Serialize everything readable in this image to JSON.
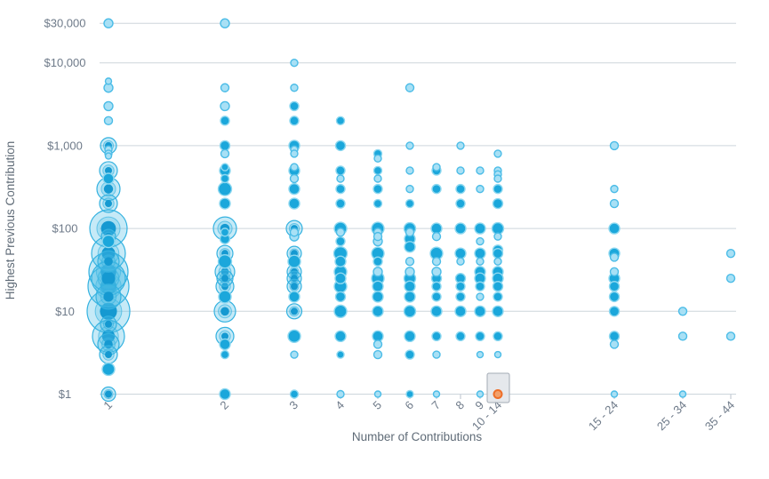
{
  "chart_data": {
    "type": "scatter",
    "title": "",
    "xlabel": "Number of Contributions",
    "ylabel": "Highest Previous Contribution",
    "y_scale": "log",
    "grid": "horizontal-only",
    "y_ticks": [
      "$1",
      "$10",
      "$100",
      "$1,000",
      "$10,000",
      "$30,000"
    ],
    "y_tick_values": [
      1,
      10,
      100,
      1000,
      10000,
      30000
    ],
    "categories": [
      "1",
      "2",
      "3",
      "4",
      "5",
      "6",
      "7",
      "8",
      "9",
      "10 - 14",
      "15 - 24",
      "25 - 34",
      "35 - 44"
    ],
    "point_format": [
      "category_index",
      "dollar_value",
      "radius_px",
      "shade(d=dark,l=light,s=selected)"
    ],
    "points": [
      [
        0,
        30000,
        5,
        "l"
      ],
      [
        0,
        6000,
        3.5,
        "l"
      ],
      [
        0,
        5000,
        5,
        "l"
      ],
      [
        0,
        3000,
        5,
        "l"
      ],
      [
        0,
        2000,
        4.5,
        "l"
      ],
      [
        0,
        1000,
        9,
        "d"
      ],
      [
        0,
        900,
        4,
        "l"
      ],
      [
        0,
        800,
        4,
        "l"
      ],
      [
        0,
        750,
        3.5,
        "l"
      ],
      [
        0,
        500,
        10,
        "d"
      ],
      [
        0,
        400,
        6,
        "d"
      ],
      [
        0,
        300,
        13,
        "l"
      ],
      [
        0,
        200,
        10,
        "d"
      ],
      [
        0,
        100,
        21,
        "d"
      ],
      [
        0,
        80,
        8,
        "d"
      ],
      [
        0,
        70,
        7,
        "d"
      ],
      [
        0,
        50,
        19,
        "l"
      ],
      [
        0,
        40,
        12,
        "d"
      ],
      [
        0,
        30,
        22,
        "d"
      ],
      [
        0,
        25,
        19,
        "l"
      ],
      [
        0,
        20,
        23,
        "d"
      ],
      [
        0,
        15,
        14,
        "d"
      ],
      [
        0,
        10,
        24,
        "d"
      ],
      [
        0,
        7,
        9,
        "d"
      ],
      [
        0,
        5,
        18,
        "d"
      ],
      [
        0,
        4,
        12,
        "d"
      ],
      [
        0,
        3,
        10,
        "d"
      ],
      [
        0,
        2,
        7,
        "d"
      ],
      [
        0,
        1,
        8,
        "d"
      ],
      [
        1,
        30000,
        5,
        "l"
      ],
      [
        1,
        5000,
        4.5,
        "l"
      ],
      [
        1,
        3000,
        5,
        "l"
      ],
      [
        1,
        2000,
        5,
        "d"
      ],
      [
        1,
        1000,
        5.5,
        "d"
      ],
      [
        1,
        800,
        4.5,
        "l"
      ],
      [
        1,
        550,
        4,
        "d"
      ],
      [
        1,
        500,
        6,
        "d"
      ],
      [
        1,
        400,
        4.5,
        "d"
      ],
      [
        1,
        300,
        7.5,
        "d"
      ],
      [
        1,
        200,
        6,
        "d"
      ],
      [
        1,
        100,
        13,
        "d"
      ],
      [
        1,
        90,
        4.5,
        "d"
      ],
      [
        1,
        75,
        5.5,
        "d"
      ],
      [
        1,
        50,
        9,
        "d"
      ],
      [
        1,
        40,
        7.5,
        "d"
      ],
      [
        1,
        30,
        11,
        "d"
      ],
      [
        1,
        25,
        9,
        "d"
      ],
      [
        1,
        20,
        10,
        "d"
      ],
      [
        1,
        15,
        7,
        "d"
      ],
      [
        1,
        10,
        12,
        "d"
      ],
      [
        1,
        5,
        10,
        "d"
      ],
      [
        1,
        4,
        6,
        "d"
      ],
      [
        1,
        3,
        4.5,
        "d"
      ],
      [
        1,
        1,
        6,
        "d"
      ],
      [
        2,
        10000,
        4,
        "l"
      ],
      [
        2,
        5000,
        4,
        "l"
      ],
      [
        2,
        3000,
        5,
        "d"
      ],
      [
        2,
        2000,
        5,
        "d"
      ],
      [
        2,
        1000,
        6,
        "d"
      ],
      [
        2,
        900,
        4,
        "l"
      ],
      [
        2,
        800,
        4,
        "l"
      ],
      [
        2,
        550,
        4,
        "l"
      ],
      [
        2,
        500,
        6,
        "d"
      ],
      [
        2,
        400,
        4.5,
        "l"
      ],
      [
        2,
        300,
        6,
        "d"
      ],
      [
        2,
        200,
        6,
        "d"
      ],
      [
        2,
        100,
        9,
        "d"
      ],
      [
        2,
        90,
        4.5,
        "l"
      ],
      [
        2,
        80,
        5,
        "l"
      ],
      [
        2,
        50,
        8,
        "d"
      ],
      [
        2,
        40,
        7,
        "d"
      ],
      [
        2,
        30,
        8,
        "d"
      ],
      [
        2,
        25,
        8,
        "d"
      ],
      [
        2,
        20,
        8,
        "d"
      ],
      [
        2,
        15,
        6,
        "d"
      ],
      [
        2,
        10,
        8.5,
        "d"
      ],
      [
        2,
        5,
        7,
        "d"
      ],
      [
        2,
        3,
        4,
        "l"
      ],
      [
        2,
        1,
        4.5,
        "d"
      ],
      [
        3,
        2000,
        4.5,
        "d"
      ],
      [
        3,
        1000,
        5.5,
        "d"
      ],
      [
        3,
        500,
        5,
        "d"
      ],
      [
        3,
        400,
        4,
        "l"
      ],
      [
        3,
        300,
        5,
        "d"
      ],
      [
        3,
        200,
        5,
        "d"
      ],
      [
        3,
        100,
        7,
        "d"
      ],
      [
        3,
        90,
        4.5,
        "l"
      ],
      [
        3,
        70,
        5,
        "d"
      ],
      [
        3,
        50,
        7.5,
        "d"
      ],
      [
        3,
        40,
        6,
        "d"
      ],
      [
        3,
        30,
        7,
        "d"
      ],
      [
        3,
        25,
        6,
        "d"
      ],
      [
        3,
        20,
        7,
        "d"
      ],
      [
        3,
        15,
        5.5,
        "d"
      ],
      [
        3,
        10,
        7,
        "d"
      ],
      [
        3,
        5,
        6,
        "d"
      ],
      [
        3,
        3,
        4,
        "d"
      ],
      [
        3,
        1,
        4,
        "l"
      ],
      [
        4,
        800,
        4.5,
        "d"
      ],
      [
        4,
        700,
        4,
        "l"
      ],
      [
        4,
        500,
        4.5,
        "d"
      ],
      [
        4,
        400,
        4,
        "l"
      ],
      [
        4,
        300,
        5,
        "d"
      ],
      [
        4,
        200,
        4.5,
        "d"
      ],
      [
        4,
        100,
        7,
        "d"
      ],
      [
        4,
        90,
        4.5,
        "l"
      ],
      [
        4,
        80,
        4.5,
        "l"
      ],
      [
        4,
        70,
        5,
        "l"
      ],
      [
        4,
        50,
        7,
        "d"
      ],
      [
        4,
        40,
        5,
        "d"
      ],
      [
        4,
        30,
        5,
        "l"
      ],
      [
        4,
        25,
        7,
        "d"
      ],
      [
        4,
        20,
        6,
        "d"
      ],
      [
        4,
        15,
        6,
        "d"
      ],
      [
        4,
        10,
        6,
        "d"
      ],
      [
        4,
        5,
        6,
        "d"
      ],
      [
        4,
        4,
        4.5,
        "l"
      ],
      [
        4,
        3,
        4.5,
        "l"
      ],
      [
        4,
        1,
        3.5,
        "l"
      ],
      [
        5,
        5000,
        4.5,
        "l"
      ],
      [
        5,
        1000,
        4,
        "l"
      ],
      [
        5,
        500,
        4,
        "l"
      ],
      [
        5,
        300,
        4,
        "l"
      ],
      [
        5,
        200,
        4.5,
        "d"
      ],
      [
        5,
        100,
        6.5,
        "d"
      ],
      [
        5,
        90,
        4.5,
        "l"
      ],
      [
        5,
        75,
        6,
        "d"
      ],
      [
        5,
        60,
        6,
        "d"
      ],
      [
        5,
        40,
        4.5,
        "l"
      ],
      [
        5,
        30,
        5,
        "l"
      ],
      [
        5,
        25,
        6.5,
        "d"
      ],
      [
        5,
        20,
        6,
        "d"
      ],
      [
        5,
        15,
        6,
        "d"
      ],
      [
        5,
        10,
        6.5,
        "d"
      ],
      [
        5,
        5,
        6,
        "d"
      ],
      [
        5,
        3,
        5,
        "d"
      ],
      [
        5,
        1,
        4,
        "d"
      ],
      [
        6,
        550,
        4,
        "l"
      ],
      [
        6,
        500,
        5,
        "d"
      ],
      [
        6,
        300,
        5,
        "d"
      ],
      [
        6,
        100,
        6,
        "d"
      ],
      [
        6,
        80,
        4.5,
        "l"
      ],
      [
        6,
        50,
        7,
        "d"
      ],
      [
        6,
        40,
        4.5,
        "l"
      ],
      [
        6,
        30,
        5,
        "l"
      ],
      [
        6,
        25,
        5.5,
        "d"
      ],
      [
        6,
        20,
        5,
        "d"
      ],
      [
        6,
        15,
        5,
        "d"
      ],
      [
        6,
        10,
        6,
        "d"
      ],
      [
        6,
        5,
        5,
        "d"
      ],
      [
        6,
        3,
        4,
        "l"
      ],
      [
        6,
        1,
        3.5,
        "l"
      ],
      [
        7,
        1000,
        4,
        "l"
      ],
      [
        7,
        500,
        4,
        "l"
      ],
      [
        7,
        300,
        5,
        "d"
      ],
      [
        7,
        200,
        5,
        "d"
      ],
      [
        7,
        100,
        6,
        "d"
      ],
      [
        7,
        50,
        6,
        "d"
      ],
      [
        7,
        40,
        4,
        "l"
      ],
      [
        7,
        25,
        5.5,
        "d"
      ],
      [
        7,
        20,
        5,
        "d"
      ],
      [
        7,
        15,
        5,
        "d"
      ],
      [
        7,
        10,
        6,
        "d"
      ],
      [
        7,
        5,
        5,
        "d"
      ],
      [
        8,
        500,
        4,
        "l"
      ],
      [
        8,
        300,
        4,
        "l"
      ],
      [
        8,
        100,
        6,
        "d"
      ],
      [
        8,
        70,
        4,
        "l"
      ],
      [
        8,
        50,
        6,
        "d"
      ],
      [
        8,
        40,
        4,
        "l"
      ],
      [
        8,
        30,
        6,
        "d"
      ],
      [
        8,
        25,
        6,
        "d"
      ],
      [
        8,
        20,
        5,
        "d"
      ],
      [
        8,
        15,
        4,
        "l"
      ],
      [
        8,
        10,
        6,
        "d"
      ],
      [
        8,
        5,
        5,
        "d"
      ],
      [
        8,
        3,
        3.5,
        "l"
      ],
      [
        8,
        1,
        3.5,
        "l"
      ],
      [
        9,
        800,
        4,
        "l"
      ],
      [
        9,
        500,
        4,
        "l"
      ],
      [
        9,
        450,
        4,
        "l"
      ],
      [
        9,
        400,
        4,
        "l"
      ],
      [
        9,
        300,
        5,
        "d"
      ],
      [
        9,
        200,
        5.5,
        "d"
      ],
      [
        9,
        100,
        6.5,
        "d"
      ],
      [
        9,
        80,
        4,
        "l"
      ],
      [
        9,
        55,
        5.5,
        "d"
      ],
      [
        9,
        50,
        5.5,
        "d"
      ],
      [
        9,
        40,
        4,
        "l"
      ],
      [
        9,
        30,
        6,
        "d"
      ],
      [
        9,
        25,
        6,
        "d"
      ],
      [
        9,
        20,
        5.5,
        "d"
      ],
      [
        9,
        15,
        5,
        "d"
      ],
      [
        9,
        10,
        6,
        "d"
      ],
      [
        9,
        5,
        5,
        "d"
      ],
      [
        9,
        3,
        3.5,
        "l"
      ],
      [
        9,
        1,
        4.5,
        "s"
      ],
      [
        10,
        1000,
        4.5,
        "l"
      ],
      [
        10,
        300,
        4,
        "l"
      ],
      [
        10,
        200,
        4.5,
        "l"
      ],
      [
        10,
        100,
        6,
        "d"
      ],
      [
        10,
        50,
        6,
        "d"
      ],
      [
        10,
        45,
        4.5,
        "l"
      ],
      [
        10,
        30,
        4.5,
        "l"
      ],
      [
        10,
        25,
        6,
        "d"
      ],
      [
        10,
        20,
        5.5,
        "d"
      ],
      [
        10,
        15,
        5.5,
        "d"
      ],
      [
        10,
        10,
        5.5,
        "d"
      ],
      [
        10,
        5,
        5.5,
        "d"
      ],
      [
        10,
        4,
        4.5,
        "l"
      ],
      [
        10,
        1,
        3.5,
        "l"
      ],
      [
        11,
        10,
        4.5,
        "l"
      ],
      [
        11,
        5,
        4.5,
        "l"
      ],
      [
        11,
        1,
        3.5,
        "l"
      ],
      [
        12,
        50,
        4.5,
        "l"
      ],
      [
        12,
        25,
        4.5,
        "l"
      ],
      [
        12,
        5,
        4.5,
        "l"
      ]
    ],
    "selected_point": {
      "category": "10 - 14",
      "value": 1,
      "value_label": "$1"
    },
    "legend": "none",
    "colors": {
      "bubble_dark_fill": "#1BA7DB",
      "bubble_dark_rim": "#8ED8F0",
      "bubble_light_fill": "#A8E0F5",
      "bubble_light_stroke": "#4BBCE7",
      "bubble_translucent_fill": "rgba(77,189,230,0.32)",
      "bubble_translucent_stroke": "#35B2E0",
      "bubble_center_dot": "#1599D1",
      "selected_fill": "#F2A06B",
      "selected_stroke": "#EE6E28",
      "selection_box_fill": "#E3E6EA",
      "selection_box_border": "#A3ABB5",
      "gridline": "#CDD5DC",
      "axis_tick": "#B9C2CB",
      "axis_text": "#6E7A89",
      "axis_title_text": "#5F6B77",
      "background": "#FFFFFF"
    }
  }
}
